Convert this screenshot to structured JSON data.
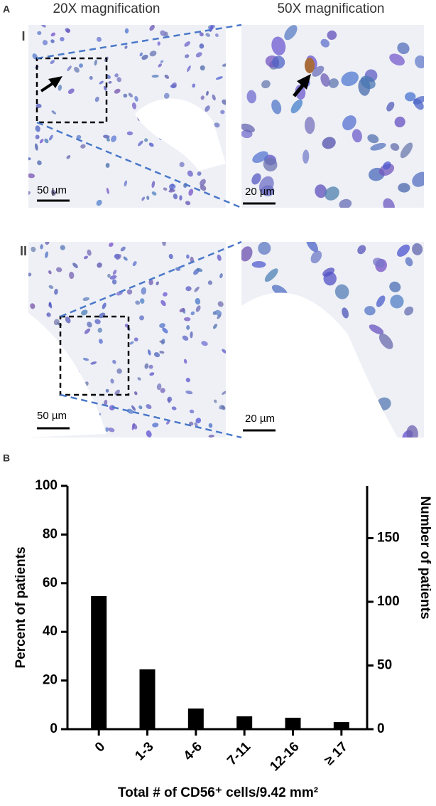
{
  "panel_a": {
    "label": "A",
    "columns": [
      "20X magnification",
      "50X magnification"
    ],
    "rows": [
      {
        "label": "I",
        "scale_bars": [
          "50 µm",
          "20 µm"
        ]
      },
      {
        "label": "II",
        "scale_bars": [
          "50 µm",
          "20 µm"
        ]
      }
    ]
  },
  "panel_b_label": "B",
  "chart_data": {
    "type": "bar",
    "categories": [
      "0",
      "1-3",
      "4-6",
      "7-11",
      "12-16",
      "≥ 17"
    ],
    "values": [
      54.7,
      24.6,
      8.5,
      5.3,
      4.7,
      2.9
    ],
    "color": "#000000",
    "ylabel": "Percent of patients",
    "y2label": "Number of patients",
    "xlabel": "Total # of CD56⁺ cells/9.42 mm²",
    "ylim": [
      0,
      100
    ],
    "yticks": [
      0,
      20,
      40,
      60,
      80,
      100
    ],
    "y2lim": [
      0,
      191
    ],
    "y2ticks": [
      0,
      50,
      100,
      150
    ]
  }
}
